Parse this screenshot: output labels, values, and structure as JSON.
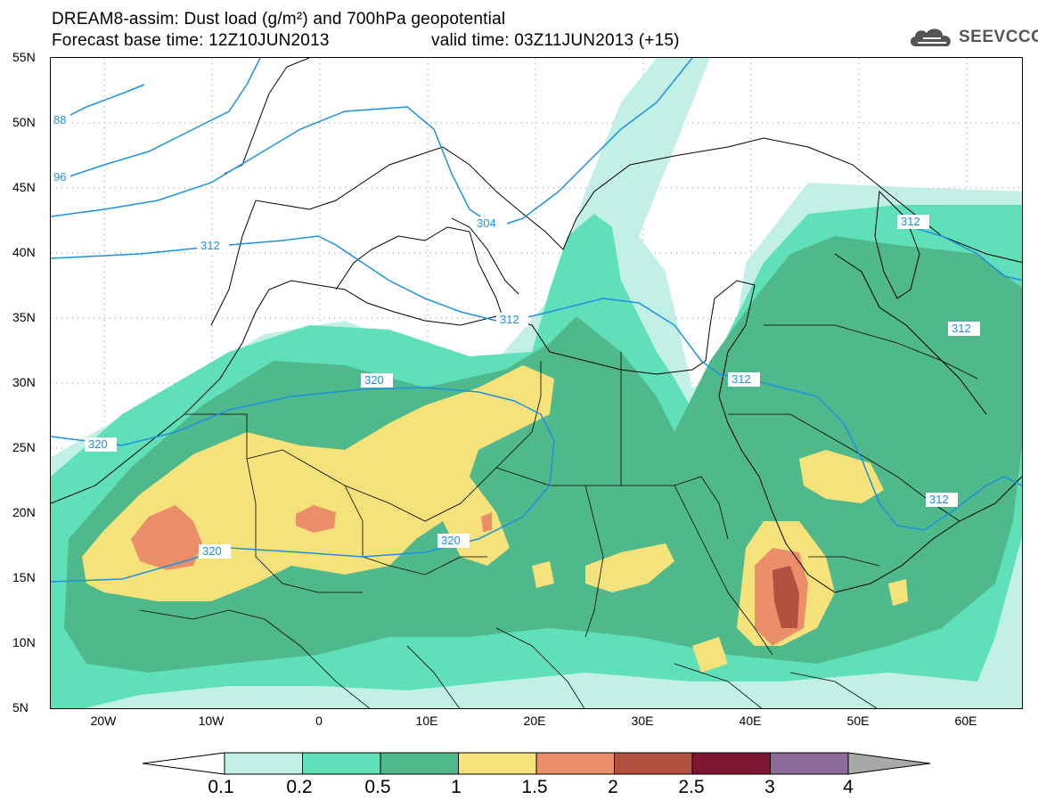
{
  "title": {
    "line1": "DREAM8-assim: Dust load (g/m²) and 700hPa geopotential",
    "base_time": "Forecast base time: 12Z10JUN2013",
    "valid_time": "valid time: 03Z11JUN2013 (+15)"
  },
  "logo": {
    "text": "SEEVCCC",
    "icon": "cloud-icon"
  },
  "lat_labels": [
    "55N",
    "50N",
    "45N",
    "40N",
    "35N",
    "30N",
    "25N",
    "20N",
    "15N",
    "10N",
    "5N"
  ],
  "lon_labels": [
    "20W",
    "10W",
    "0",
    "10E",
    "20E",
    "30E",
    "40E",
    "50E",
    "60E"
  ],
  "contour_labels": [
    "88",
    "96",
    "304",
    "312",
    "312",
    "312",
    "312",
    "312",
    "320",
    "320",
    "320",
    "320"
  ],
  "colorbar": {
    "ticks": [
      "0.1",
      "0.2",
      "0.5",
      "1",
      "1.5",
      "2",
      "2.5",
      "3",
      "4"
    ],
    "colors": [
      "#c3f0e6",
      "#5fe0b8",
      "#4fb98b",
      "#f6e27a",
      "#ea8f6a",
      "#b4503f",
      "#7d1533",
      "#8c6a9a"
    ],
    "extend_high_color": "#a9a9a9"
  },
  "colors": {
    "dust_0_1": "#c3f0e6",
    "dust_0_2": "#5fe0b8",
    "dust_0_5": "#4fb98b",
    "dust_1": "#f6e27a",
    "dust_1_5": "#ea8f6a",
    "dust_2": "#b4503f",
    "dust_2_5": "#7d1533",
    "contour": "#1e90e0"
  }
}
